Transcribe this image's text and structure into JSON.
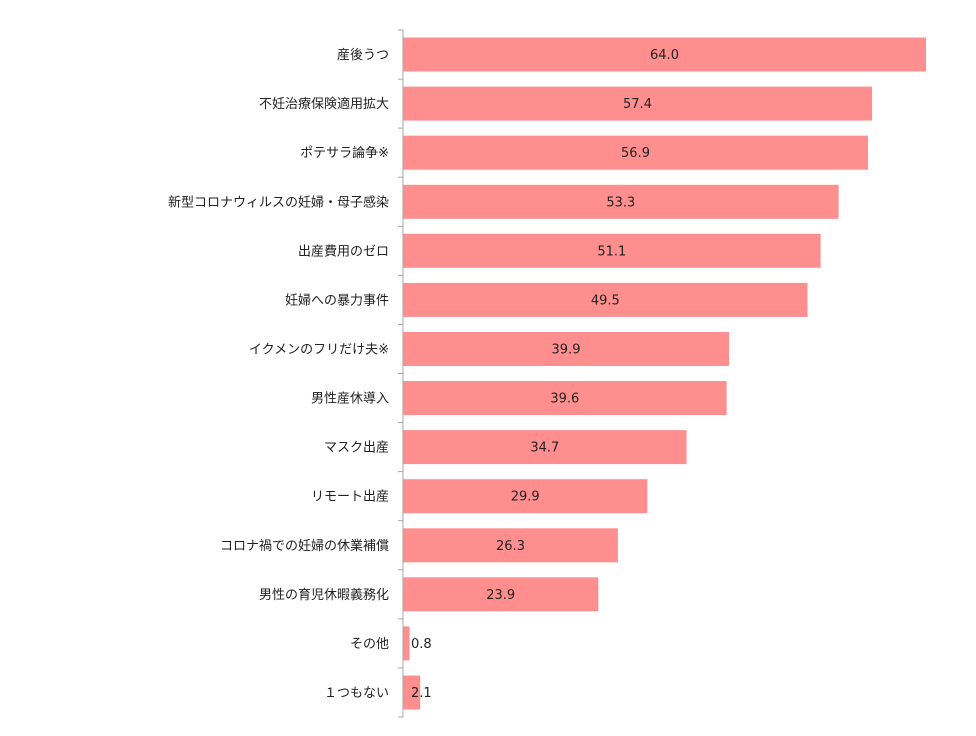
{
  "chart_data": {
    "type": "bar",
    "orientation": "horizontal",
    "title": "",
    "xlabel": "",
    "ylabel": "",
    "categories": [
      "産後うつ",
      "不妊治療保険適用拡大",
      "ポテサラ論争※",
      "新型コロナウィルスの妊婦・母子感染",
      "出産費用のゼロ",
      "妊婦への暴力事件",
      "イクメンのフリだけ夫※",
      "男性産休導入",
      "マスク出産",
      "リモート出産",
      "コロナ禍での妊婦の休業補償",
      "男性の育児休暇義務化",
      "その他",
      "１つもない"
    ],
    "values": [
      64.0,
      57.4,
      56.9,
      53.3,
      51.1,
      49.5,
      39.9,
      39.6,
      34.7,
      29.9,
      26.3,
      23.9,
      0.8,
      2.1
    ],
    "value_labels": [
      "64.0",
      "57.4",
      "56.9",
      "53.3",
      "51.1",
      "49.5",
      "39.9",
      "39.6",
      "34.7",
      "29.9",
      "26.3",
      "23.9",
      "0.8",
      "2.1"
    ],
    "xlim": [
      0,
      64.0
    ],
    "grid": false,
    "legend": "none",
    "bar_color": "#ff8f8f"
  }
}
